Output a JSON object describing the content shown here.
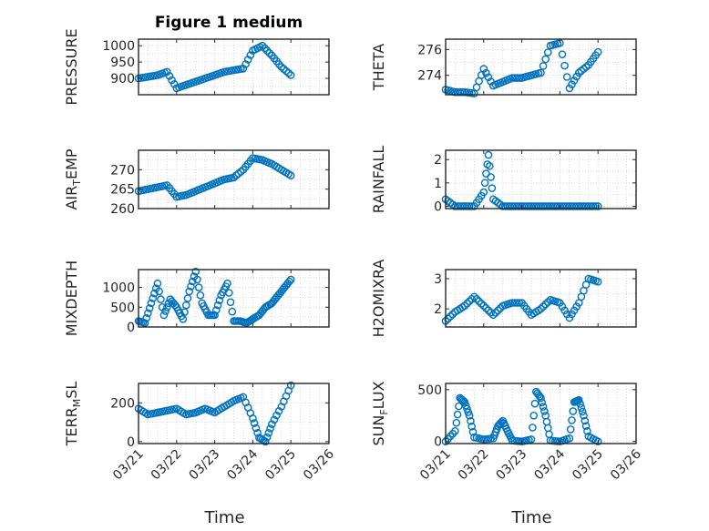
{
  "figure": {
    "title": "Figure 1 medium",
    "marker_color": "#0072BD"
  },
  "chart_data": [
    {
      "type": "scatter",
      "ylabel": "PRESSURE",
      "xlim": [
        "03/21",
        "03/26"
      ],
      "ylim": [
        850,
        1020
      ],
      "yticks": [
        "900",
        "950",
        "1000"
      ],
      "xticks_labeled": false,
      "series": [
        {
          "x": [
            "03/21 00:00",
            "03/21 06:00",
            "03/21 12:00",
            "03/21 18:00",
            "03/22 00:00",
            "03/22 06:00",
            "03/22 12:00",
            "03/22 18:00",
            "03/23 00:00",
            "03/23 06:00",
            "03/23 12:00",
            "03/23 18:00",
            "03/24 00:00",
            "03/24 06:00",
            "03/24 12:00",
            "03/24 18:00",
            "03/25 00:00"
          ],
          "y": [
            900,
            905,
            910,
            920,
            870,
            880,
            890,
            900,
            910,
            920,
            925,
            930,
            985,
            1000,
            970,
            935,
            910
          ]
        }
      ]
    },
    {
      "type": "scatter",
      "ylabel": "THETA",
      "xlim": [
        "03/21",
        "03/26"
      ],
      "ylim": [
        272.5,
        276.8
      ],
      "yticks": [
        "274",
        "276"
      ],
      "xticks_labeled": false,
      "series": [
        {
          "x": [
            "03/21 00:00",
            "03/21 06:00",
            "03/21 12:00",
            "03/21 18:00",
            "03/22 00:00",
            "03/22 06:00",
            "03/22 12:00",
            "03/22 18:00",
            "03/23 00:00",
            "03/23 06:00",
            "03/23 12:00",
            "03/23 18:00",
            "03/24 00:00",
            "03/24 06:00",
            "03/24 12:00",
            "03/24 18:00",
            "03/25 00:00"
          ],
          "y": [
            272.9,
            272.7,
            272.7,
            272.6,
            274.5,
            273.2,
            273.5,
            273.8,
            273.8,
            274.0,
            274.2,
            276.3,
            276.5,
            273.0,
            274.2,
            274.8,
            275.8
          ]
        }
      ]
    },
    {
      "type": "scatter",
      "ylabel": "AIR_TEMP",
      "xlim": [
        "03/21",
        "03/26"
      ],
      "ylim": [
        260,
        275
      ],
      "yticks": [
        "260",
        "265",
        "270"
      ],
      "xticks_labeled": false,
      "series": [
        {
          "x": [
            "03/21 00:00",
            "03/21 06:00",
            "03/21 12:00",
            "03/21 18:00",
            "03/22 00:00",
            "03/22 06:00",
            "03/22 12:00",
            "03/22 18:00",
            "03/23 00:00",
            "03/23 06:00",
            "03/23 12:00",
            "03/23 18:00",
            "03/24 00:00",
            "03/24 06:00",
            "03/24 12:00",
            "03/24 18:00",
            "03/25 00:00"
          ],
          "y": [
            264.5,
            265,
            265.5,
            266,
            263,
            263.5,
            264.5,
            265.5,
            266.5,
            267.5,
            268,
            270,
            273,
            272.5,
            271.5,
            270,
            268.5
          ]
        }
      ]
    },
    {
      "type": "scatter",
      "ylabel": "RAINFALL",
      "xlim": [
        "03/21",
        "03/26"
      ],
      "ylim": [
        -0.1,
        2.4
      ],
      "yticks": [
        "0",
        "1",
        "2"
      ],
      "xticks_labeled": false,
      "series": [
        {
          "x": [
            "03/21 00:00",
            "03/21 06:00",
            "03/21 12:00",
            "03/21 18:00",
            "03/22 00:00",
            "03/22 03:00",
            "03/22 06:00",
            "03/22 12:00",
            "03/22 18:00",
            "03/23 00:00",
            "03/23 06:00",
            "03/23 12:00",
            "03/23 18:00",
            "03/24 00:00",
            "03/24 06:00",
            "03/24 12:00",
            "03/24 18:00",
            "03/25 00:00"
          ],
          "y": [
            0.3,
            0,
            0,
            0,
            0.6,
            2.2,
            0.3,
            0,
            0,
            0,
            0,
            0,
            0,
            0,
            0,
            0,
            0,
            0
          ]
        }
      ]
    },
    {
      "type": "scatter",
      "ylabel": "MIXDEPTH",
      "xlim": [
        "03/21",
        "03/26"
      ],
      "ylim": [
        0,
        1450
      ],
      "yticks": [
        "0",
        "500",
        "1000"
      ],
      "xticks_labeled": false,
      "series": [
        {
          "x": [
            "03/21 00:00",
            "03/21 04:00",
            "03/21 08:00",
            "03/21 12:00",
            "03/21 16:00",
            "03/21 20:00",
            "03/22 00:00",
            "03/22 04:00",
            "03/22 08:00",
            "03/22 12:00",
            "03/22 16:00",
            "03/22 20:00",
            "03/23 00:00",
            "03/23 04:00",
            "03/23 08:00",
            "03/23 12:00",
            "03/23 16:00",
            "03/23 20:00",
            "03/24 00:00",
            "03/24 04:00",
            "03/24 08:00",
            "03/24 12:00",
            "03/24 16:00",
            "03/24 20:00",
            "03/25 00:00"
          ],
          "y": [
            150,
            100,
            600,
            1100,
            300,
            700,
            500,
            200,
            900,
            1400,
            600,
            300,
            300,
            800,
            1100,
            150,
            150,
            100,
            200,
            300,
            500,
            600,
            800,
            1000,
            1200
          ]
        }
      ]
    },
    {
      "type": "scatter",
      "ylabel": "H2OMIXRA",
      "xlim": [
        "03/21",
        "03/26"
      ],
      "ylim": [
        1.4,
        3.3
      ],
      "yticks": [
        "2",
        "3"
      ],
      "xticks_labeled": false,
      "series": [
        {
          "x": [
            "03/21 00:00",
            "03/21 06:00",
            "03/21 12:00",
            "03/21 18:00",
            "03/22 00:00",
            "03/22 06:00",
            "03/22 12:00",
            "03/22 18:00",
            "03/23 00:00",
            "03/23 06:00",
            "03/23 12:00",
            "03/23 18:00",
            "03/24 00:00",
            "03/24 06:00",
            "03/24 12:00",
            "03/24 18:00",
            "03/25 00:00"
          ],
          "y": [
            1.6,
            1.9,
            2.1,
            2.4,
            2.1,
            1.8,
            2.1,
            2.2,
            2.2,
            1.8,
            2.0,
            2.3,
            2.2,
            1.7,
            2.2,
            3.0,
            2.9
          ]
        }
      ]
    },
    {
      "type": "scatter",
      "ylabel": "TERR_MSL",
      "xlim": [
        "03/21",
        "03/26"
      ],
      "ylim": [
        -10,
        300
      ],
      "yticks": [
        "0",
        "200"
      ],
      "xticks_labeled": true,
      "xticks": [
        "03/21",
        "03/22",
        "03/23",
        "03/24",
        "03/25",
        "03/26"
      ],
      "xlabel": "Time",
      "series": [
        {
          "x": [
            "03/21 00:00",
            "03/21 06:00",
            "03/21 12:00",
            "03/21 18:00",
            "03/22 00:00",
            "03/22 06:00",
            "03/22 12:00",
            "03/22 18:00",
            "03/23 00:00",
            "03/23 06:00",
            "03/23 12:00",
            "03/23 18:00",
            "03/24 00:00",
            "03/24 04:00",
            "03/24 08:00",
            "03/24 12:00",
            "03/24 18:00",
            "03/25 00:00"
          ],
          "y": [
            170,
            140,
            150,
            160,
            170,
            140,
            150,
            170,
            150,
            180,
            210,
            230,
            120,
            20,
            0,
            90,
            180,
            290
          ]
        }
      ]
    },
    {
      "type": "scatter",
      "ylabel": "SUN_FLUX",
      "xlim": [
        "03/21",
        "03/26"
      ],
      "ylim": [
        -20,
        560
      ],
      "yticks": [
        "0",
        "500"
      ],
      "xticks_labeled": true,
      "xticks": [
        "03/21",
        "03/22",
        "03/23",
        "03/24",
        "03/25",
        "03/26"
      ],
      "xlabel": "Time",
      "series": [
        {
          "x": [
            "03/21 00:00",
            "03/21 06:00",
            "03/21 09:00",
            "03/21 12:00",
            "03/21 15:00",
            "03/21 18:00",
            "03/22 00:00",
            "03/22 06:00",
            "03/22 09:00",
            "03/22 12:00",
            "03/22 15:00",
            "03/22 18:00",
            "03/23 00:00",
            "03/23 06:00",
            "03/23 09:00",
            "03/23 12:00",
            "03/23 15:00",
            "03/23 18:00",
            "03/24 00:00",
            "03/24 06:00",
            "03/24 09:00",
            "03/24 12:00",
            "03/24 15:00",
            "03/24 18:00",
            "03/25 00:00"
          ],
          "y": [
            0,
            100,
            420,
            380,
            250,
            40,
            20,
            30,
            150,
            200,
            100,
            10,
            0,
            20,
            480,
            420,
            250,
            10,
            0,
            30,
            380,
            400,
            250,
            50,
            0
          ]
        }
      ]
    }
  ]
}
